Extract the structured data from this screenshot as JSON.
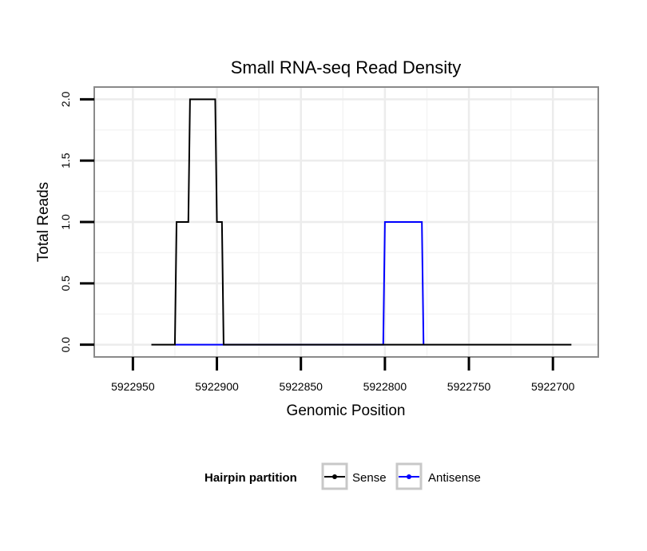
{
  "chart_data": {
    "type": "line",
    "title": "Small RNA-seq Read Density",
    "xlabel": "Genomic Position",
    "ylabel": "Total Reads",
    "x_reversed": true,
    "xlim": [
      5922973,
      5922673
    ],
    "ylim": [
      -0.1,
      2.1
    ],
    "xticks": [
      5922950,
      5922900,
      5922850,
      5922800,
      5922750,
      5922700
    ],
    "xtick_labels": [
      "5922950",
      "5922900",
      "5922850",
      "5922800",
      "5922750",
      "5922700"
    ],
    "yticks": [
      0.0,
      0.5,
      1.0,
      1.5,
      2.0
    ],
    "ytick_labels": [
      "0.0",
      "0.5",
      "1.0",
      "1.5",
      "2.0"
    ],
    "grid": true,
    "legend": {
      "title": "Hairpin partition",
      "position": "bottom"
    },
    "series": [
      {
        "name": "Sense",
        "color": "#000000",
        "x": [
          5922939,
          5922925,
          5922924,
          5922917,
          5922916,
          5922901,
          5922900,
          5922897,
          5922896,
          5922689
        ],
        "y": [
          0,
          0,
          1,
          1,
          2,
          2,
          1,
          1,
          0,
          0
        ]
      },
      {
        "name": "Antisense",
        "color": "#0000ff",
        "x": [
          5922925,
          5922896,
          5922801,
          5922800,
          5922778,
          5922777
        ],
        "y": [
          0,
          0,
          0,
          1,
          1,
          0
        ]
      }
    ]
  }
}
